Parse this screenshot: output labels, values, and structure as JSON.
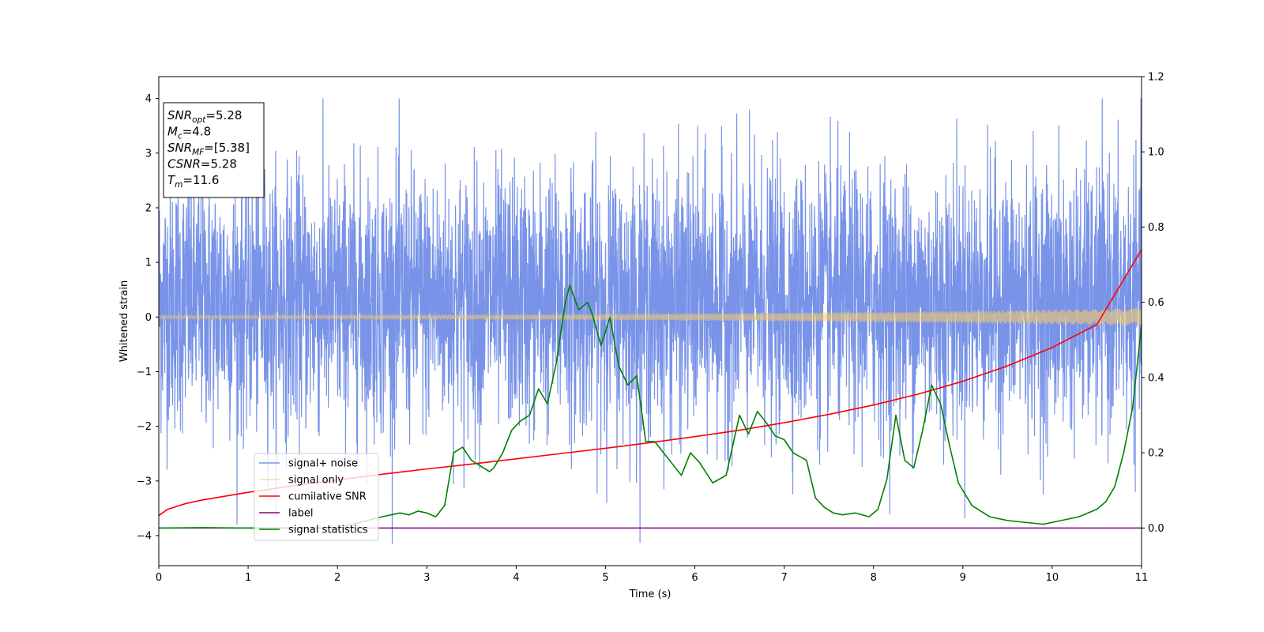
{
  "chart_data": {
    "type": "line",
    "xlabel": "Time (s)",
    "ylabel": "Whitened strain",
    "xlim": [
      0,
      11
    ],
    "ylim": [
      -4.55,
      4.4
    ],
    "y2lim": [
      -0.1,
      1.2
    ],
    "x_ticks": [
      0,
      1,
      2,
      3,
      4,
      5,
      6,
      7,
      8,
      9,
      10,
      11
    ],
    "y_ticks": [
      4,
      3,
      2,
      1,
      0,
      -1,
      -2,
      -3,
      -4
    ],
    "y_tick_labels": [
      "4",
      "3",
      "2",
      "1",
      "0",
      "−1",
      "−2",
      "−3",
      "−4"
    ],
    "y2_ticks": [
      0.0,
      0.2,
      0.4,
      0.6,
      0.8,
      1.0,
      1.2
    ],
    "y2_tick_labels": [
      "0.0",
      "0.2",
      "0.4",
      "0.6",
      "0.8",
      "1.0",
      "1.2"
    ],
    "grid": false,
    "legend_position": "lower-left",
    "annotation": [
      {
        "base": "SNR",
        "sub": "opt",
        "rest": "=5.28"
      },
      {
        "base": "M",
        "sub": "c",
        "rest": "=4.8"
      },
      {
        "base": "SNR",
        "sub": "MF",
        "rest": "=[5.38]"
      },
      {
        "base": "CSNR",
        "sub": "",
        "rest": "=5.28"
      },
      {
        "base": "T",
        "sub": "m",
        "rest": "=11.6"
      }
    ],
    "series": [
      {
        "name": "signal+ noise",
        "color": "#7893e8",
        "axis": "left",
        "kind": "noise",
        "x_range": [
          0,
          11
        ],
        "typical_range": [
          -1.6,
          2.2
        ],
        "extremes_range": [
          -4.15,
          4.0
        ]
      },
      {
        "name": "signal only",
        "color": "#f5c96a",
        "axis": "left",
        "kind": "chirp",
        "x_range": [
          0,
          11
        ],
        "amplitude_start": 0.03,
        "amplitude_end": 0.16
      },
      {
        "name": "cumilative SNR",
        "color": "#ff0000",
        "axis": "right",
        "x": [
          0,
          0.1,
          0.3,
          0.5,
          1,
          1.5,
          2,
          2.5,
          3,
          3.5,
          4,
          4.5,
          5,
          5.5,
          6,
          6.5,
          7,
          7.5,
          8,
          8.5,
          9,
          9.5,
          10,
          10.5,
          11
        ],
        "y": [
          0.033,
          0.05,
          0.065,
          0.075,
          0.095,
          0.112,
          0.128,
          0.143,
          0.157,
          0.17,
          0.184,
          0.198,
          0.212,
          0.227,
          0.243,
          0.26,
          0.28,
          0.302,
          0.327,
          0.356,
          0.39,
          0.431,
          0.48,
          0.541,
          0.74
        ]
      },
      {
        "name": "label",
        "color": "#800080",
        "axis": "right",
        "x": [
          0,
          11
        ],
        "y": [
          0.0,
          0.0
        ]
      },
      {
        "name": "signal statistics",
        "color": "#008000",
        "axis": "right",
        "x": [
          0,
          0.5,
          1,
          2,
          2.5,
          2.7,
          2.8,
          2.9,
          3.0,
          3.1,
          3.2,
          3.3,
          3.4,
          3.5,
          3.6,
          3.7,
          3.75,
          3.85,
          3.95,
          4.05,
          4.15,
          4.25,
          4.35,
          4.45,
          4.55,
          4.6,
          4.7,
          4.8,
          4.85,
          4.95,
          5.05,
          5.15,
          5.25,
          5.35,
          5.45,
          5.55,
          5.65,
          5.75,
          5.85,
          5.95,
          6.05,
          6.2,
          6.35,
          6.5,
          6.6,
          6.7,
          6.8,
          6.9,
          7.0,
          7.1,
          7.25,
          7.35,
          7.45,
          7.55,
          7.65,
          7.8,
          7.95,
          8.05,
          8.15,
          8.25,
          8.35,
          8.45,
          8.55,
          8.65,
          8.75,
          8.85,
          8.95,
          9.1,
          9.3,
          9.5,
          9.7,
          9.9,
          10.1,
          10.3,
          10.5,
          10.6,
          10.7,
          10.8,
          10.9,
          11.0
        ],
        "y": [
          0.0,
          0.001,
          0.0,
          0.0,
          0.03,
          0.04,
          0.035,
          0.045,
          0.04,
          0.03,
          0.06,
          0.2,
          0.215,
          0.18,
          0.165,
          0.15,
          0.16,
          0.2,
          0.26,
          0.285,
          0.3,
          0.37,
          0.33,
          0.44,
          0.6,
          0.645,
          0.58,
          0.6,
          0.57,
          0.485,
          0.56,
          0.43,
          0.38,
          0.405,
          0.23,
          0.23,
          0.2,
          0.17,
          0.14,
          0.2,
          0.175,
          0.12,
          0.14,
          0.3,
          0.25,
          0.31,
          0.28,
          0.245,
          0.235,
          0.2,
          0.18,
          0.08,
          0.055,
          0.04,
          0.035,
          0.04,
          0.03,
          0.05,
          0.13,
          0.3,
          0.18,
          0.16,
          0.26,
          0.38,
          0.33,
          0.22,
          0.12,
          0.06,
          0.03,
          0.02,
          0.015,
          0.01,
          0.02,
          0.03,
          0.05,
          0.07,
          0.11,
          0.2,
          0.32,
          0.54
        ]
      }
    ]
  }
}
